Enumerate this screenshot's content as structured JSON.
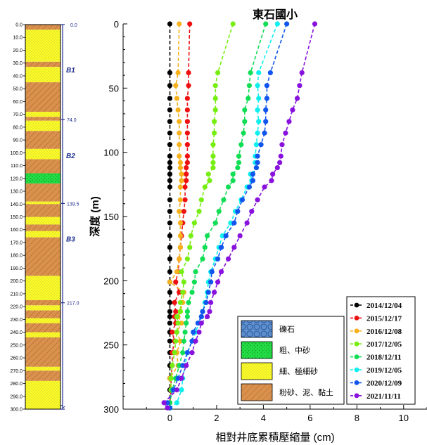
{
  "chart_data": {
    "type": "line",
    "title": "東石國小",
    "xlabel": "相對井底累積壓縮量 (cm)",
    "ylabel": "深度 (m)",
    "xlim": [
      -2,
      11
    ],
    "ylim": [
      300,
      0
    ],
    "xticks": [
      "0",
      "2",
      "4",
      "6",
      "8",
      "10"
    ],
    "yticks": [
      "0",
      "50",
      "100",
      "150",
      "200",
      "250",
      "300"
    ],
    "depths": [
      0,
      38,
      48,
      58,
      67,
      76,
      85,
      94,
      103,
      108,
      112,
      117,
      122,
      127,
      137,
      146,
      155,
      165,
      174,
      183,
      193,
      201,
      209,
      217,
      224,
      228,
      233,
      240,
      247,
      256,
      266,
      276,
      285,
      295,
      299
    ],
    "series": [
      {
        "name": "2014/12/04",
        "color": "#000000",
        "values": [
          0,
          0,
          0,
          0,
          0,
          0,
          0,
          0,
          0,
          0,
          0,
          0,
          0,
          0,
          0,
          0,
          0,
          0,
          0,
          0,
          0,
          0,
          0,
          0,
          0,
          0,
          0,
          0,
          0,
          0,
          0,
          0,
          0,
          0,
          0
        ]
      },
      {
        "name": "2015/12/17",
        "color": "#ee1111",
        "values": [
          0.85,
          0.8,
          0.8,
          0.75,
          0.75,
          0.75,
          0.75,
          0.75,
          0.75,
          0.75,
          0.7,
          0.7,
          0.7,
          0.65,
          0.65,
          0.6,
          0.55,
          0.5,
          0.45,
          0.4,
          0.35,
          0.25,
          0.4,
          0.2,
          0.25,
          0.2,
          0.25,
          0.1,
          0.2,
          0.1,
          0.1,
          0.05,
          0.05,
          0,
          0
        ]
      },
      {
        "name": "2016/12/08",
        "color": "#f7b11c",
        "values": [
          0.4,
          0.35,
          0.25,
          0.3,
          0.35,
          0.4,
          0.4,
          0.4,
          0.4,
          0.45,
          0.45,
          0.5,
          0.5,
          0.45,
          0.45,
          0.4,
          0.45,
          0.45,
          0.45,
          0.4,
          0.3,
          0,
          0.6,
          0.55,
          0.45,
          0.35,
          0.5,
          0.3,
          0.45,
          0.3,
          0.35,
          0,
          0.05,
          0,
          0
        ]
      },
      {
        "name": "2017/12/05",
        "color": "#77ee11",
        "values": [
          2.7,
          2.05,
          1.95,
          1.95,
          1.95,
          1.9,
          1.9,
          1.85,
          1.85,
          1.85,
          1.85,
          1.65,
          1.7,
          1.5,
          1.35,
          1.25,
          1.05,
          0.9,
          0.85,
          0.75,
          0.5,
          0.6,
          0.55,
          0.45,
          0.45,
          0.3,
          0.35,
          0.3,
          0.25,
          0.2,
          0.1,
          0.05,
          0.05,
          0,
          0
        ]
      },
      {
        "name": "2018/12/11",
        "color": "#11dd55",
        "values": [
          4.1,
          3.45,
          3.4,
          3.35,
          3.2,
          3.2,
          3.15,
          3.05,
          2.95,
          2.95,
          2.9,
          2.7,
          2.7,
          2.5,
          2.3,
          2.1,
          1.95,
          1.6,
          1.5,
          1.4,
          1.1,
          1.05,
          0.95,
          0.8,
          0.75,
          0.75,
          0.7,
          0.65,
          0.6,
          0.55,
          0.4,
          0.25,
          0.1,
          0,
          0
        ]
      },
      {
        "name": "2019/12/05",
        "color": "#11eeee",
        "values": [
          4.6,
          3.8,
          3.75,
          3.8,
          3.75,
          3.8,
          3.75,
          3.7,
          3.65,
          3.65,
          3.7,
          3.45,
          3.5,
          3.3,
          3.05,
          2.8,
          2.6,
          2.25,
          2.1,
          1.95,
          1.75,
          1.65,
          1.6,
          1.5,
          1.4,
          1.35,
          1.25,
          1.1,
          0.95,
          0.75,
          0.65,
          0.55,
          0.5,
          0.3,
          0
        ]
      },
      {
        "name": "2020/12/09",
        "color": "#1155ee",
        "values": [
          5,
          4.3,
          4.15,
          4.15,
          4.1,
          4.1,
          4.05,
          3.9,
          3.75,
          3.75,
          3.7,
          3.55,
          3.55,
          3.4,
          3.1,
          2.9,
          2.75,
          2.4,
          2.2,
          2.05,
          1.8,
          1.75,
          1.65,
          1.55,
          1.4,
          1.35,
          1.2,
          1.0,
          0.95,
          0.75,
          0.55,
          0.35,
          0.15,
          -0.1,
          0
        ]
      },
      {
        "name": "2021/11/11",
        "color": "#8811dd",
        "values": [
          6.2,
          5.65,
          5.55,
          5.45,
          5.25,
          5.1,
          4.95,
          4.8,
          4.75,
          4.7,
          4.6,
          4.4,
          4.35,
          4.05,
          3.75,
          3.5,
          3.3,
          3.0,
          2.75,
          2.5,
          2.2,
          2.05,
          1.9,
          1.75,
          1.7,
          1.6,
          1.35,
          1.25,
          1.1,
          0.95,
          0.7,
          0.5,
          0.3,
          -0.25,
          -0.1
        ]
      }
    ]
  },
  "column": {
    "depth_ticks": [
      "0.0",
      "10.0",
      "20.0",
      "30.0",
      "40.0",
      "50.0",
      "60.0",
      "70.0",
      "80.0",
      "90.0",
      "100.0",
      "110.0",
      "120.0",
      "130.0",
      "140.0",
      "150.0",
      "160.0",
      "170.0",
      "180.0",
      "190.0",
      "200.0",
      "210.0",
      "220.0",
      "230.0",
      "240.0",
      "250.0",
      "260.0",
      "270.0",
      "280.0",
      "290.0",
      "300.0"
    ],
    "layers": [
      {
        "top": 0,
        "bottom": 4,
        "kind": "clay"
      },
      {
        "top": 4,
        "bottom": 29,
        "kind": "sand"
      },
      {
        "top": 29,
        "bottom": 33,
        "kind": "clay"
      },
      {
        "top": 33,
        "bottom": 45,
        "kind": "sand"
      },
      {
        "top": 45,
        "bottom": 68,
        "kind": "clay"
      },
      {
        "top": 68,
        "bottom": 72,
        "kind": "sand"
      },
      {
        "top": 72,
        "bottom": 75,
        "kind": "clay"
      },
      {
        "top": 75,
        "bottom": 83,
        "kind": "sand"
      },
      {
        "top": 83,
        "bottom": 97,
        "kind": "clay"
      },
      {
        "top": 97,
        "bottom": 105,
        "kind": "sand"
      },
      {
        "top": 105,
        "bottom": 116,
        "kind": "clay"
      },
      {
        "top": 116,
        "bottom": 124,
        "kind": "coarse"
      },
      {
        "top": 124,
        "bottom": 138,
        "kind": "clay"
      },
      {
        "top": 138,
        "bottom": 140,
        "kind": "sand"
      },
      {
        "top": 140,
        "bottom": 150,
        "kind": "clay"
      },
      {
        "top": 150,
        "bottom": 156,
        "kind": "sand"
      },
      {
        "top": 156,
        "bottom": 161,
        "kind": "clay"
      },
      {
        "top": 161,
        "bottom": 166,
        "kind": "sand"
      },
      {
        "top": 166,
        "bottom": 196,
        "kind": "clay"
      },
      {
        "top": 196,
        "bottom": 215,
        "kind": "sand"
      },
      {
        "top": 215,
        "bottom": 219,
        "kind": "clay"
      },
      {
        "top": 219,
        "bottom": 223,
        "kind": "sand"
      },
      {
        "top": 223,
        "bottom": 229,
        "kind": "clay"
      },
      {
        "top": 229,
        "bottom": 233,
        "kind": "sand"
      },
      {
        "top": 233,
        "bottom": 240,
        "kind": "clay"
      },
      {
        "top": 240,
        "bottom": 244,
        "kind": "sand"
      },
      {
        "top": 244,
        "bottom": 267,
        "kind": "clay"
      },
      {
        "top": 267,
        "bottom": 270,
        "kind": "sand"
      },
      {
        "top": 270,
        "bottom": 278,
        "kind": "clay"
      },
      {
        "top": 278,
        "bottom": 300,
        "kind": "sand"
      }
    ],
    "well_top": "0.0",
    "bench_labels": [
      {
        "text": "B1",
        "depth": 35
      },
      {
        "text": "B2",
        "depth": 102
      },
      {
        "text": "B3",
        "depth": 167
      }
    ],
    "bench_depths": [
      {
        "text": "74.0",
        "depth": 74
      },
      {
        "text": "139.5",
        "depth": 139.5
      },
      {
        "text": "217.0",
        "depth": 217
      }
    ]
  },
  "lithology_legend": [
    {
      "label": "礫石",
      "kind": "gravel"
    },
    {
      "label": "粗、中砂",
      "kind": "coarse"
    },
    {
      "label": "細、極細砂",
      "kind": "sand"
    },
    {
      "label": "粉砂、泥、黏土",
      "kind": "clay"
    }
  ],
  "colors": {
    "sand": "#ffff22",
    "clay": "#d9914d",
    "coarse": "#22dd44",
    "gravel": "#5b8fd0",
    "bench": "#1f2f8f"
  }
}
